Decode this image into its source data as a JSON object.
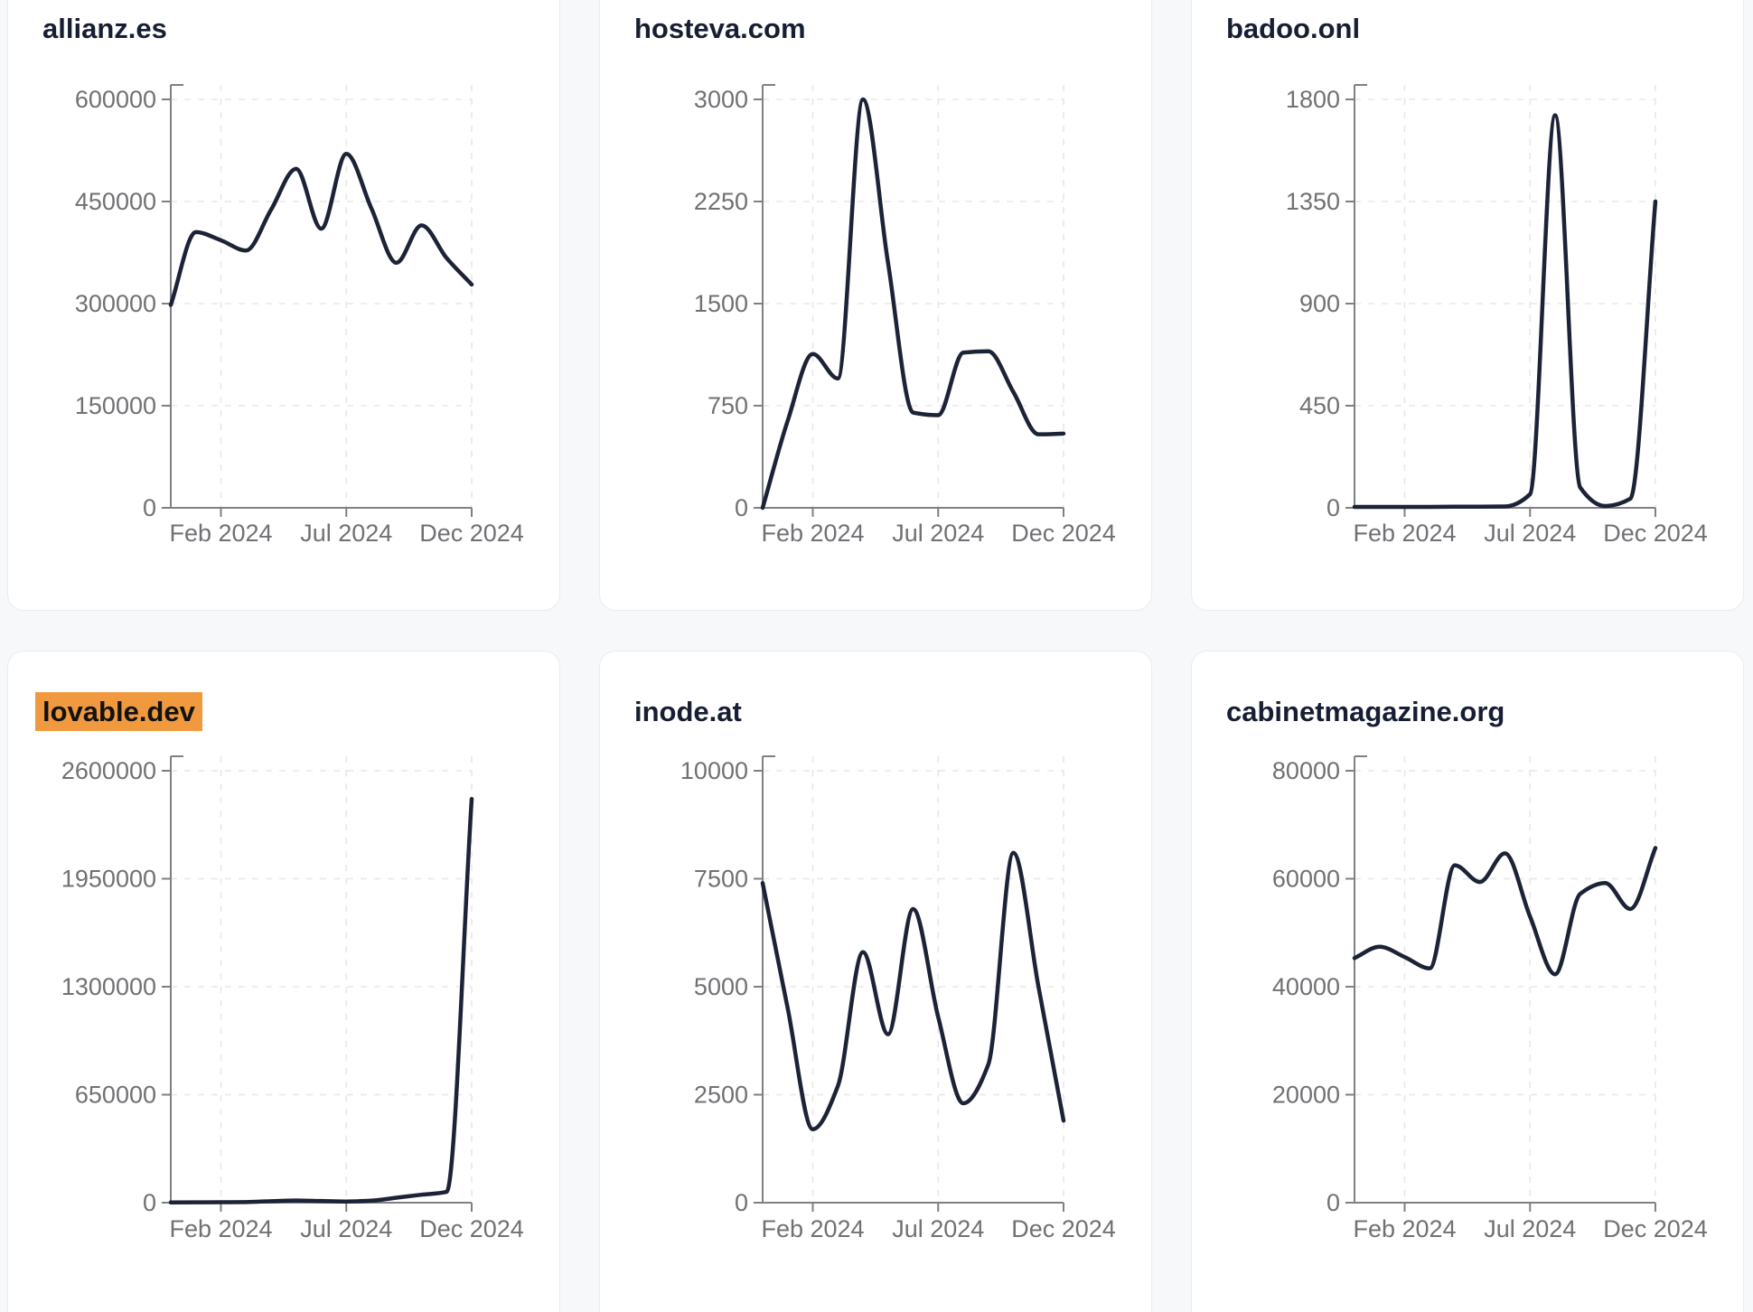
{
  "page": {
    "background": "#f7f8fa"
  },
  "colors": {
    "line": "#1d2336",
    "title": "#171e33",
    "axis": "#7f8084",
    "tick_label": "#717175",
    "grid": "#e8e8ea",
    "card_bg": "#ffffff",
    "card_border": "#e9ebf1",
    "page_bg": "#f7f8fa",
    "highlight_bg": "#f0993e",
    "highlight_text": "#121212"
  },
  "x_axis": {
    "labels": [
      "Feb 2024",
      "Jul 2024",
      "Dec 2024"
    ],
    "tick_indices": [
      2,
      7,
      12
    ],
    "n_points": 13
  },
  "chart_data": [
    {
      "type": "line",
      "title": "allianz.es",
      "highlighted": false,
      "ylim": [
        0,
        600000
      ],
      "yticks": [
        0,
        150000,
        300000,
        450000,
        600000
      ],
      "x_tick_labels": [
        "Feb 2024",
        "Jul 2024",
        "Dec 2024"
      ],
      "values": [
        298000,
        405000,
        393000,
        378000,
        438000,
        498000,
        410000,
        520000,
        440000,
        360000,
        415000,
        367000,
        328000
      ]
    },
    {
      "type": "line",
      "title": "hosteva.com",
      "highlighted": false,
      "ylim": [
        0,
        3000
      ],
      "yticks": [
        0,
        750,
        1500,
        2250,
        3000
      ],
      "x_tick_labels": [
        "Feb 2024",
        "Jul 2024",
        "Dec 2024"
      ],
      "values": [
        0,
        640,
        1130,
        950,
        3000,
        1800,
        700,
        680,
        1140,
        1150,
        850,
        540,
        545
      ]
    },
    {
      "type": "line",
      "title": "badoo.onl",
      "highlighted": false,
      "ylim": [
        0,
        1800
      ],
      "yticks": [
        0,
        450,
        900,
        1350,
        1800
      ],
      "x_tick_labels": [
        "Feb 2024",
        "Jul 2024",
        "Dec 2024"
      ],
      "values": [
        4,
        4,
        4,
        4,
        5,
        5,
        6,
        60,
        1730,
        90,
        8,
        40,
        1350
      ]
    },
    {
      "type": "line",
      "title": "lovable.dev",
      "highlighted": true,
      "ylim": [
        0,
        2600000
      ],
      "yticks": [
        0,
        650000,
        1300000,
        1950000,
        2600000
      ],
      "x_tick_labels": [
        "Feb 2024",
        "Jul 2024",
        "Dec 2024"
      ],
      "values": [
        1500,
        2000,
        2500,
        3500,
        9000,
        13000,
        10000,
        7000,
        12000,
        30000,
        48000,
        65000,
        2430000
      ]
    },
    {
      "type": "line",
      "title": "inode.at",
      "highlighted": false,
      "ylim": [
        0,
        10000
      ],
      "yticks": [
        0,
        2500,
        5000,
        7500,
        10000
      ],
      "x_tick_labels": [
        "Feb 2024",
        "Jul 2024",
        "Dec 2024"
      ],
      "values": [
        7400,
        4500,
        1700,
        2700,
        5800,
        3900,
        6800,
        4300,
        2300,
        3200,
        8100,
        5000,
        1900
      ]
    },
    {
      "type": "line",
      "title": "cabinetmagazine.org",
      "highlighted": false,
      "ylim": [
        0,
        80000
      ],
      "yticks": [
        0,
        20000,
        40000,
        60000,
        80000
      ],
      "x_tick_labels": [
        "Feb 2024",
        "Jul 2024",
        "Dec 2024"
      ],
      "values": [
        45300,
        47400,
        45500,
        43400,
        62500,
        59400,
        64700,
        53000,
        42300,
        57200,
        59200,
        54400,
        65700
      ]
    }
  ]
}
